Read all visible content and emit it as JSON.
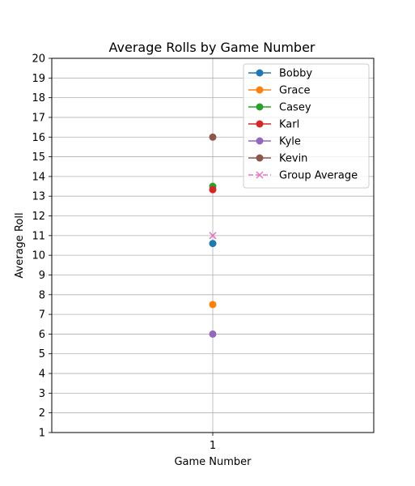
{
  "chart_data": {
    "type": "line",
    "title": "Average Rolls by Game Number",
    "xlabel": "Game Number",
    "ylabel": "Average Roll",
    "x": [
      1
    ],
    "x_tick_labels": [
      "1"
    ],
    "ylim": [
      1,
      20
    ],
    "y_ticks": [
      1,
      2,
      3,
      4,
      5,
      6,
      7,
      8,
      9,
      10,
      11,
      12,
      13,
      14,
      15,
      16,
      17,
      18,
      19,
      20
    ],
    "grid": true,
    "legend_position": "top-right",
    "series": [
      {
        "name": "Bobby",
        "values": [
          10.6
        ],
        "color": "#1f77b4",
        "marker": "circle",
        "linestyle": "solid"
      },
      {
        "name": "Grace",
        "values": [
          7.5
        ],
        "color": "#ff7f0e",
        "marker": "circle",
        "linestyle": "solid"
      },
      {
        "name": "Casey",
        "values": [
          13.5
        ],
        "color": "#2ca02c",
        "marker": "circle",
        "linestyle": "solid"
      },
      {
        "name": "Karl",
        "values": [
          13.33
        ],
        "color": "#d62728",
        "marker": "circle",
        "linestyle": "solid"
      },
      {
        "name": "Kyle",
        "values": [
          6.0
        ],
        "color": "#9467bd",
        "marker": "circle",
        "linestyle": "solid"
      },
      {
        "name": "Kevin",
        "values": [
          16.0
        ],
        "color": "#8c564b",
        "marker": "circle",
        "linestyle": "solid"
      },
      {
        "name": "Group Average",
        "values": [
          11.0
        ],
        "color": "#e377c2",
        "marker": "x",
        "linestyle": "dashed"
      }
    ]
  }
}
